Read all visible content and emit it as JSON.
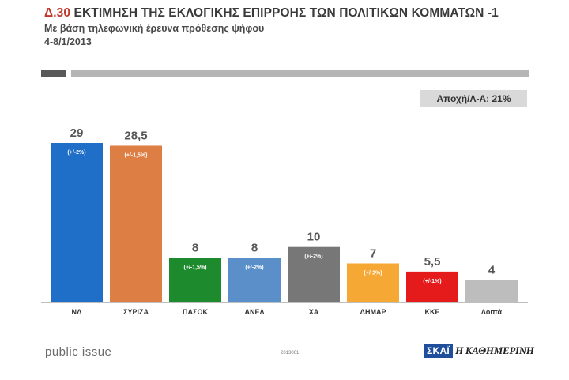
{
  "header": {
    "title_code": "Δ.30",
    "title_text": "ΕΚΤΙΜΗΣΗ ΤΗΣ ΕΚΛΟΓΙΚΗΣ ΕΠΙΡΡΟΗΣ ΤΩΝ ΠΟΛΙΤΙΚΩΝ ΚΟΜΜΑΤΩΝ -1",
    "subtitle": "Με βάση τηλεφωνική έρευνα πρόθεσης ψήφου",
    "date": "4-8/1/2013"
  },
  "abstain_label": "Αποχή/Λ-Α: 21%",
  "chart_data": {
    "type": "bar",
    "categories": [
      "ΝΔ",
      "ΣΥΡΙΖΑ",
      "ΠΑΣΟΚ",
      "ΑΝΕΛ",
      "ΧΑ",
      "ΔΗΜΑΡ",
      "ΚΚΕ",
      "Λοιπά"
    ],
    "values": [
      29,
      28.5,
      8,
      8,
      10,
      7,
      5.5,
      4
    ],
    "value_labels": [
      "29",
      "28,5",
      "8",
      "8",
      "10",
      "7",
      "5,5",
      "4"
    ],
    "margins": [
      "(+/-2%)",
      "(+/-1,5%)",
      "(+/-1,5%)",
      "(+/-2%)",
      "(+/-2%)",
      "(+/-2%)",
      "(+/-1%)",
      ""
    ],
    "colors": [
      "#1f6fc9",
      "#dd7f45",
      "#1e8a2e",
      "#5a8fc9",
      "#777777",
      "#f5a833",
      "#e51b1b",
      "#bdbdbd"
    ],
    "ylim": [
      0,
      30
    ],
    "grid": false,
    "legend": "none"
  },
  "footer": {
    "brand": "public issue",
    "code": "2013001",
    "logo_skai": "ΣΚΑΪ",
    "logo_kathimerini": "Η ΚΑΘΗΜΕΡΙΝΗ"
  }
}
